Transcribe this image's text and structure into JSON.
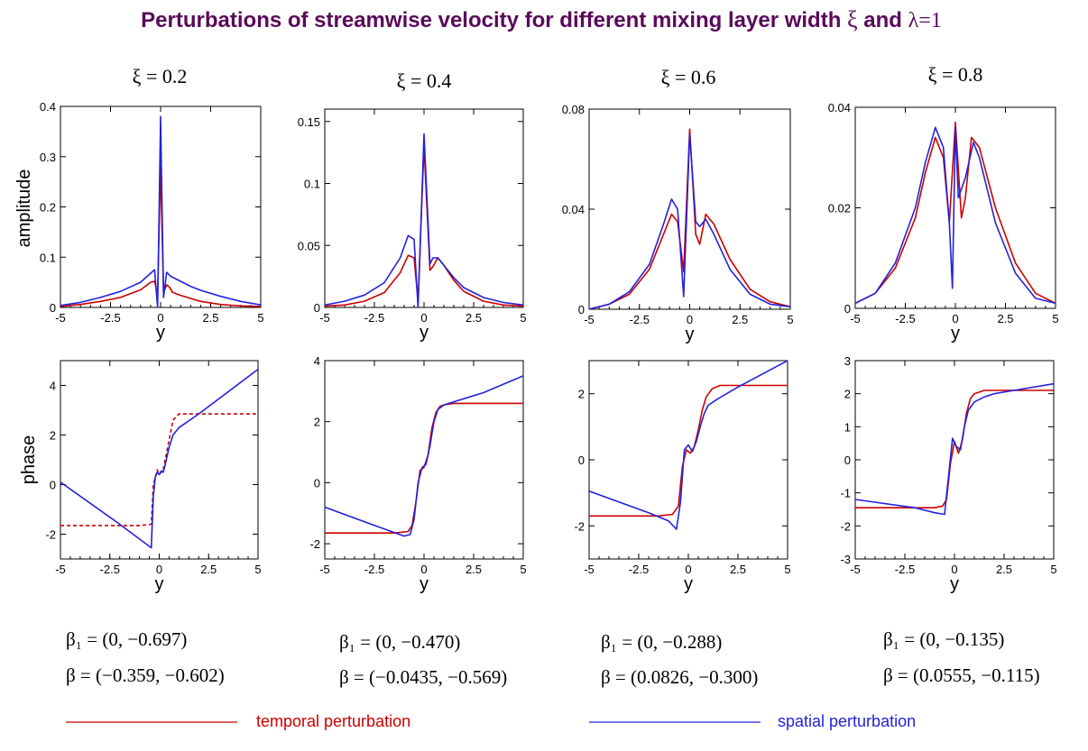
{
  "title_main": "Perturbations of streamwise velocity for different mixing layer width ",
  "title_xi": "ξ",
  "title_and": " and ",
  "title_lambda": "λ=1",
  "colors": {
    "title": "#5a0a5a",
    "temporal": "#cc0000",
    "spatial": "#2222dd"
  },
  "columns": [
    {
      "xi_label": "ξ = 0.2",
      "beta1": "β₁ = (0, −0.697)",
      "beta": "β = (−0.359, −0.602)"
    },
    {
      "xi_label": "ξ = 0.4",
      "beta1": "β₁ = (0, −0.470)",
      "beta": "β = (−0.0435, −0.569)"
    },
    {
      "xi_label": "ξ = 0.6",
      "beta1": "β₁ = (0, −0.288)",
      "beta": "β = (0.0826, −0.300)"
    },
    {
      "xi_label": "ξ = 0.8",
      "beta1": "β₁ = (0, −0.135)",
      "beta": "β = (0.0555, −0.115)"
    }
  ],
  "ylabel_amplitude": "amplitude",
  "ylabel_phase": "phase",
  "legend": {
    "temporal": "temporal perturbation",
    "spatial": "spatial perturbation"
  },
  "chart_data": [
    {
      "type": "line",
      "row": "amplitude",
      "xlabel": "y",
      "xlim": [
        -5,
        5
      ],
      "ylim": [
        0,
        0.4
      ],
      "xticks": [
        "-5",
        "-2.5",
        "0",
        "2.5",
        "5"
      ],
      "yticks": [
        "0",
        "0.1",
        "0.2",
        "0.3",
        "0.4"
      ],
      "series": [
        {
          "name": "temporal perturbation",
          "style": "solid",
          "x": [
            -5,
            -4,
            -3,
            -2,
            -1,
            -0.5,
            -0.3,
            -0.15,
            0,
            0.15,
            0.3,
            0.45,
            0.6,
            1,
            1.5,
            2,
            3,
            4,
            5
          ],
          "y": [
            0.002,
            0.006,
            0.012,
            0.02,
            0.035,
            0.05,
            0.052,
            0.025,
            0.28,
            0.03,
            0.045,
            0.04,
            0.03,
            0.024,
            0.018,
            0.012,
            0.006,
            0.003,
            0.002
          ]
        },
        {
          "name": "spatial perturbation",
          "style": "solid",
          "x": [
            -5,
            -4,
            -3,
            -2,
            -1,
            -0.5,
            -0.3,
            -0.15,
            0,
            0.15,
            0.3,
            0.5,
            1,
            1.5,
            2,
            3,
            4,
            5
          ],
          "y": [
            0.004,
            0.01,
            0.02,
            0.032,
            0.05,
            0.068,
            0.075,
            0.0,
            0.38,
            0.02,
            0.07,
            0.062,
            0.052,
            0.042,
            0.034,
            0.022,
            0.012,
            0.005
          ]
        }
      ]
    },
    {
      "type": "line",
      "row": "amplitude",
      "xlabel": "y",
      "xlim": [
        -5,
        5
      ],
      "ylim": [
        0,
        0.16
      ],
      "xticks": [
        "-5",
        "-2.5",
        "0",
        "2.5",
        "5"
      ],
      "yticks": [
        "0",
        "0.05",
        "0.1",
        "0.15"
      ],
      "series": [
        {
          "name": "temporal perturbation",
          "style": "solid",
          "x": [
            -5,
            -4,
            -3,
            -2,
            -1.2,
            -0.8,
            -0.5,
            -0.3,
            0,
            0.3,
            0.45,
            0.7,
            1,
            1.5,
            2,
            3,
            4,
            5
          ],
          "y": [
            0.001,
            0.002,
            0.005,
            0.012,
            0.028,
            0.042,
            0.04,
            0.005,
            0.13,
            0.03,
            0.033,
            0.04,
            0.034,
            0.022,
            0.013,
            0.005,
            0.002,
            0.001
          ]
        },
        {
          "name": "spatial perturbation",
          "style": "solid",
          "x": [
            -5,
            -4,
            -3,
            -2,
            -1.2,
            -0.8,
            -0.5,
            -0.3,
            0,
            0.3,
            0.45,
            0.7,
            1,
            1.5,
            2,
            3,
            4,
            5
          ],
          "y": [
            0.002,
            0.005,
            0.01,
            0.02,
            0.04,
            0.058,
            0.055,
            0.0,
            0.14,
            0.035,
            0.04,
            0.04,
            0.034,
            0.024,
            0.016,
            0.008,
            0.004,
            0.002
          ]
        }
      ]
    },
    {
      "type": "line",
      "row": "amplitude",
      "xlabel": "y",
      "xlim": [
        -5,
        5
      ],
      "ylim": [
        0,
        0.08
      ],
      "xticks": [
        "-5",
        "-2.5",
        "0",
        "2.5",
        "5"
      ],
      "yticks": [
        "0",
        "0.04",
        "0.08"
      ],
      "series": [
        {
          "name": "temporal perturbation",
          "style": "solid",
          "x": [
            -5,
            -4,
            -3,
            -2,
            -1.3,
            -0.9,
            -0.6,
            -0.3,
            0,
            0.3,
            0.5,
            0.8,
            1.2,
            2,
            3,
            4,
            5
          ],
          "y": [
            0.0,
            0.002,
            0.006,
            0.016,
            0.03,
            0.038,
            0.035,
            0.015,
            0.072,
            0.03,
            0.026,
            0.038,
            0.034,
            0.02,
            0.008,
            0.003,
            0.001
          ]
        },
        {
          "name": "spatial perturbation",
          "style": "solid",
          "x": [
            -5,
            -4,
            -3,
            -2,
            -1.3,
            -0.9,
            -0.6,
            -0.3,
            0,
            0.3,
            0.5,
            0.8,
            1.2,
            2,
            3,
            4,
            5
          ],
          "y": [
            0.0,
            0.002,
            0.007,
            0.018,
            0.034,
            0.044,
            0.04,
            0.005,
            0.07,
            0.035,
            0.033,
            0.036,
            0.03,
            0.016,
            0.006,
            0.002,
            0.001
          ]
        }
      ]
    },
    {
      "type": "line",
      "row": "amplitude",
      "xlabel": "y",
      "xlim": [
        -5,
        5
      ],
      "ylim": [
        0,
        0.04
      ],
      "xticks": [
        "-5",
        "-2.5",
        "0",
        "2.5",
        "5"
      ],
      "yticks": [
        "0",
        "0.02",
        "0.04"
      ],
      "series": [
        {
          "name": "temporal perturbation",
          "style": "solid",
          "x": [
            -5,
            -4,
            -3,
            -2,
            -1.5,
            -1,
            -0.6,
            -0.3,
            0,
            0.3,
            0.5,
            0.8,
            1.2,
            2,
            3,
            4,
            5
          ],
          "y": [
            0.001,
            0.003,
            0.008,
            0.018,
            0.027,
            0.034,
            0.03,
            0.017,
            0.037,
            0.018,
            0.022,
            0.034,
            0.032,
            0.02,
            0.009,
            0.003,
            0.001
          ]
        },
        {
          "name": "spatial perturbation",
          "style": "solid",
          "x": [
            -5,
            -4,
            -3,
            -2,
            -1.5,
            -1,
            -0.6,
            -0.3,
            -0.15,
            0,
            0.15,
            0.5,
            0.9,
            1.2,
            2,
            3,
            4,
            5
          ],
          "y": [
            0.001,
            0.003,
            0.009,
            0.02,
            0.029,
            0.036,
            0.032,
            0.017,
            0.004,
            0.036,
            0.022,
            0.026,
            0.033,
            0.03,
            0.017,
            0.007,
            0.002,
            0.001
          ]
        }
      ]
    },
    {
      "type": "line",
      "row": "phase",
      "xlabel": "y",
      "xlim": [
        -5,
        5
      ],
      "ylim": [
        -3,
        5
      ],
      "xticks": [
        "-5",
        "-2.5",
        "0",
        "2.5",
        "5"
      ],
      "yticks": [
        "-2",
        "0",
        "2",
        "4"
      ],
      "series": [
        {
          "name": "temporal perturbation",
          "style": "dashed",
          "x": [
            -5,
            -1,
            -0.4,
            -0.3,
            -0.2,
            -0.1,
            0,
            0.1,
            0.2,
            0.3,
            0.5,
            0.7,
            1,
            2,
            5
          ],
          "y": [
            -1.65,
            -1.65,
            -1.6,
            0.0,
            0.3,
            0.6,
            0.4,
            0.5,
            0.6,
            1.0,
            1.8,
            2.6,
            2.85,
            2.85,
            2.85
          ]
        },
        {
          "name": "spatial perturbation",
          "style": "solid",
          "x": [
            -5,
            -2,
            -0.4,
            -0.3,
            -0.2,
            -0.1,
            0,
            0.1,
            0.2,
            0.3,
            0.5,
            0.7,
            1,
            2,
            3,
            5
          ],
          "y": [
            0.1,
            -1.6,
            -2.55,
            -0.5,
            0.3,
            0.5,
            0.4,
            0.55,
            0.5,
            0.8,
            1.5,
            2.0,
            2.3,
            2.85,
            3.45,
            4.65
          ]
        }
      ]
    },
    {
      "type": "line",
      "row": "phase",
      "xlabel": "y",
      "xlim": [
        -5,
        5
      ],
      "ylim": [
        -2.5,
        4
      ],
      "xticks": [
        "-5",
        "-2.5",
        "0",
        "2.5",
        "5"
      ],
      "yticks": [
        "-2",
        "0",
        "2",
        "4"
      ],
      "series": [
        {
          "name": "temporal perturbation",
          "style": "solid",
          "x": [
            -5,
            -1.5,
            -0.8,
            -0.6,
            -0.4,
            -0.2,
            0,
            0.2,
            0.4,
            0.6,
            0.8,
            1,
            1.5,
            5
          ],
          "y": [
            -1.65,
            -1.65,
            -1.6,
            -1.4,
            -0.6,
            0.4,
            0.5,
            0.9,
            1.8,
            2.3,
            2.5,
            2.55,
            2.6,
            2.6
          ]
        },
        {
          "name": "spatial perturbation",
          "style": "solid",
          "x": [
            -5,
            -2.5,
            -1,
            -0.7,
            -0.5,
            -0.3,
            -0.1,
            0.1,
            0.3,
            0.5,
            0.7,
            1,
            2,
            3,
            5
          ],
          "y": [
            -0.8,
            -1.4,
            -1.75,
            -1.7,
            -1.2,
            0.0,
            0.5,
            0.6,
            1.2,
            2.0,
            2.4,
            2.55,
            2.75,
            2.95,
            3.5
          ]
        }
      ]
    },
    {
      "type": "line",
      "row": "phase",
      "xlabel": "y",
      "xlim": [
        -5,
        5
      ],
      "ylim": [
        -3,
        3
      ],
      "xticks": [
        "-5",
        "-2.5",
        "0",
        "2.5",
        "5"
      ],
      "yticks": [
        "-2",
        "0",
        "2"
      ],
      "series": [
        {
          "name": "temporal perturbation",
          "style": "solid",
          "x": [
            -5,
            -1.5,
            -0.8,
            -0.5,
            -0.3,
            -0.1,
            0.1,
            0.3,
            0.5,
            0.7,
            0.9,
            1.2,
            1.6,
            2,
            5
          ],
          "y": [
            -1.7,
            -1.7,
            -1.65,
            -1.4,
            -0.2,
            0.3,
            0.2,
            0.4,
            0.9,
            1.5,
            1.9,
            2.15,
            2.25,
            2.25,
            2.25
          ]
        },
        {
          "name": "spatial perturbation",
          "style": "solid",
          "x": [
            -5,
            -2,
            -1,
            -0.6,
            -0.4,
            -0.2,
            0,
            0.2,
            0.4,
            0.6,
            0.8,
            1,
            1.5,
            2.5,
            5
          ],
          "y": [
            -0.95,
            -1.6,
            -1.85,
            -2.1,
            -1.3,
            0.3,
            0.45,
            0.25,
            0.55,
            1.0,
            1.4,
            1.65,
            1.85,
            2.2,
            3.0
          ]
        }
      ]
    },
    {
      "type": "line",
      "row": "phase",
      "xlabel": "y",
      "xlim": [
        -5,
        5
      ],
      "ylim": [
        -3,
        3
      ],
      "xticks": [
        "-5",
        "-2.5",
        "0",
        "2.5",
        "5"
      ],
      "yticks": [
        "-3",
        "-2",
        "-1",
        "0",
        "1",
        "2",
        "3"
      ],
      "series": [
        {
          "name": "temporal perturbation",
          "style": "solid",
          "x": [
            -5,
            -1,
            -0.6,
            -0.4,
            -0.2,
            0,
            0.2,
            0.4,
            0.6,
            0.8,
            1,
            1.5,
            2,
            5
          ],
          "y": [
            -1.45,
            -1.45,
            -1.4,
            -1.2,
            -0.1,
            0.55,
            0.2,
            0.6,
            1.4,
            1.85,
            2.0,
            2.1,
            2.1,
            2.1
          ]
        },
        {
          "name": "spatial perturbation",
          "style": "solid",
          "x": [
            -5,
            -2,
            -1,
            -0.5,
            -0.3,
            -0.1,
            0.1,
            0.3,
            0.5,
            0.7,
            1,
            1.5,
            2,
            3,
            5
          ],
          "y": [
            -1.2,
            -1.45,
            -1.6,
            -1.65,
            -0.5,
            0.65,
            0.4,
            0.3,
            1.0,
            1.5,
            1.75,
            1.9,
            2.0,
            2.1,
            2.3
          ]
        }
      ]
    }
  ]
}
